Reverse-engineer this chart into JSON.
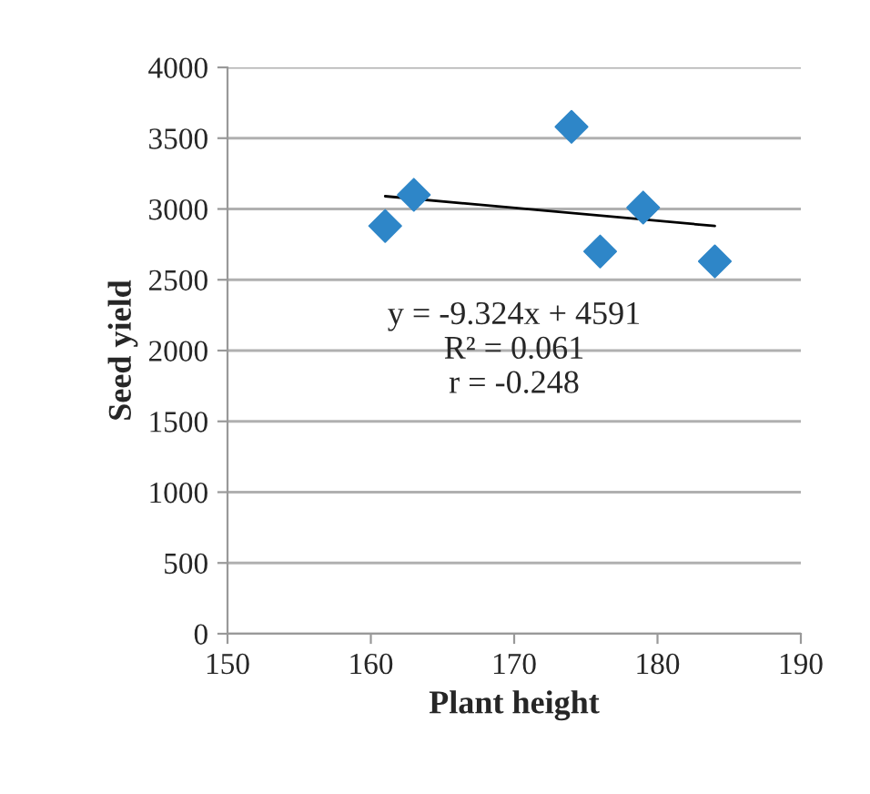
{
  "chart_data": {
    "type": "scatter",
    "xlabel": "Plant height",
    "ylabel": "Seed yield",
    "xlim": [
      150,
      190
    ],
    "xticks": [
      150,
      160,
      170,
      180,
      190
    ],
    "ylim": [
      0,
      4000
    ],
    "yticks": [
      0,
      500,
      1000,
      1500,
      2000,
      2500,
      3000,
      3500,
      4000
    ],
    "grid": "y",
    "annotations": [
      "y = -9.324x + 4591\nR² = 0.061\nr = -0.248"
    ],
    "series": [
      {
        "color": "#2e86c8",
        "marker": "diamond",
        "x": [
          161,
          163,
          174,
          176,
          179,
          184
        ],
        "values": [
          2880,
          3100,
          3580,
          2700,
          3010,
          2630
        ]
      },
      {
        "type": "line",
        "color": "#000000",
        "x": [
          161,
          184
        ],
        "values": [
          3090,
          2880
        ]
      }
    ]
  }
}
